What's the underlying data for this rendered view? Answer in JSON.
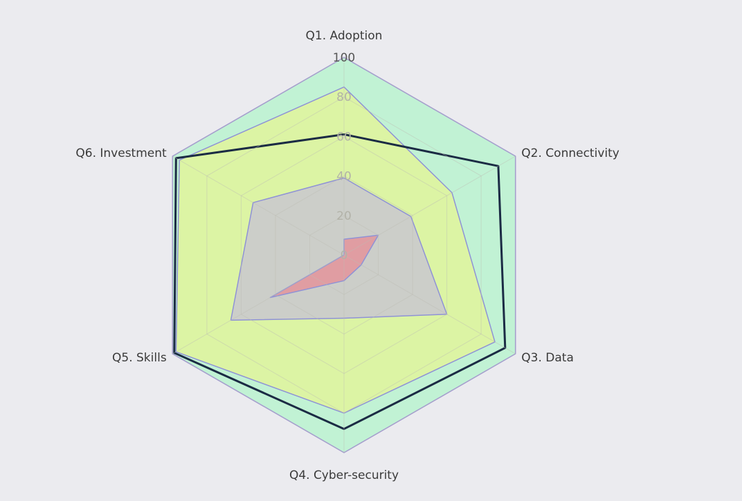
{
  "chart_data": {
    "type": "radar",
    "axes": [
      "Q1. Adoption",
      "Q2. Connectivity",
      "Q3. Data",
      "Q4. Cyber-security",
      "Q5. Skills",
      "Q6. Investment"
    ],
    "ticks": [
      0,
      20,
      40,
      60,
      80,
      100
    ],
    "range": [
      0,
      100
    ],
    "grid": true,
    "legend": false,
    "series": [
      {
        "values": [
          100,
          100,
          100,
          100,
          100,
          100
        ],
        "fill": "#c1f2d4",
        "stroke": "#9a8fd8",
        "fill_opacity": 1,
        "stroke_width": 1.5
      },
      {
        "values": [
          85,
          63,
          88,
          80,
          98,
          96
        ],
        "fill": "#dcf4a4",
        "stroke": "#8f92d6",
        "fill_opacity": 1,
        "stroke_width": 1.5
      },
      {
        "values": [
          61,
          90,
          94,
          88,
          99,
          98
        ],
        "fill": "none",
        "stroke": "#1b2b44",
        "fill_opacity": 0,
        "stroke_width": 3
      },
      {
        "values": [
          39,
          39,
          60,
          32,
          66,
          53
        ],
        "fill": "#cacacc",
        "stroke": "#8f92d6",
        "fill_opacity": 0.92,
        "stroke_width": 1.5
      },
      {
        "values": [
          8,
          20,
          10,
          13,
          43,
          0
        ],
        "fill": "#e09aa0",
        "stroke": "#8f92d6",
        "fill_opacity": 0.95,
        "stroke_width": 1.5
      }
    ]
  }
}
